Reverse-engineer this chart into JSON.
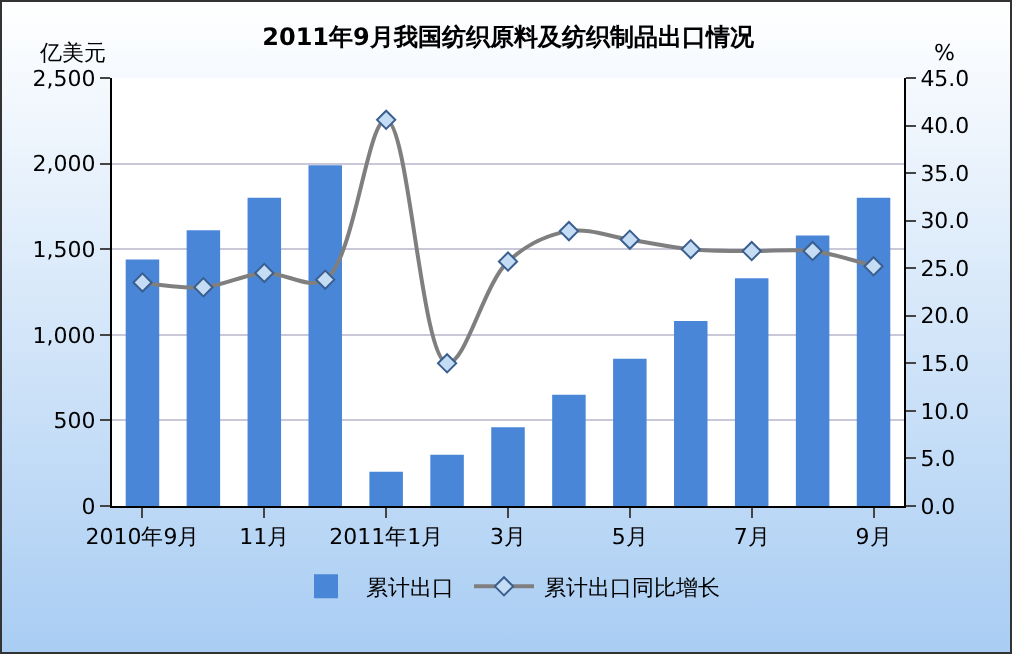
{
  "chart_data": {
    "type": "bar",
    "title": "2011年9月我国纺织原料及纺织制品出口情况",
    "ylabel": "亿美元",
    "y2label": "%",
    "categories": [
      "2010年9月",
      null,
      "11月",
      null,
      "2011年1月",
      null,
      "3月",
      null,
      "5月",
      null,
      "7月",
      null,
      "9月"
    ],
    "series": [
      {
        "name": "累计出口",
        "color": "#4a86d8",
        "values": [
          1440,
          1610,
          1800,
          1990,
          200,
          300,
          460,
          650,
          860,
          1080,
          1330,
          1580,
          1800
        ]
      },
      {
        "name": "累计出口同比增长",
        "type": "line",
        "axis": "y2",
        "color": "#7f7f7f",
        "marker": "diamond",
        "values": [
          23.5,
          23.0,
          24.5,
          23.8,
          40.6,
          15.0,
          25.7,
          28.9,
          28.0,
          27.0,
          26.8,
          26.8,
          25.2
        ]
      }
    ],
    "ylim": [
      0,
      2500
    ],
    "yticks": [
      {
        "value": 0,
        "label": "0"
      },
      {
        "value": 500,
        "label": "500"
      },
      {
        "value": 1000,
        "label": "1,000"
      },
      {
        "value": 1500,
        "label": "1,500"
      },
      {
        "value": 2000,
        "label": "2,000"
      },
      {
        "value": 2500,
        "label": "2,500"
      }
    ],
    "y2lim": [
      0,
      45
    ],
    "y2ticks": [
      {
        "value": 0,
        "label": "0.0"
      },
      {
        "value": 5,
        "label": "5.0"
      },
      {
        "value": 10,
        "label": "10.0"
      },
      {
        "value": 15,
        "label": "15.0"
      },
      {
        "value": 20,
        "label": "20.0"
      },
      {
        "value": 25,
        "label": "25.0"
      },
      {
        "value": 30,
        "label": "30.0"
      },
      {
        "value": 35,
        "label": "35.0"
      },
      {
        "value": 40,
        "label": "40.0"
      },
      {
        "value": 45,
        "label": "45.0"
      }
    ],
    "grid": "y",
    "legend": "bottom"
  }
}
